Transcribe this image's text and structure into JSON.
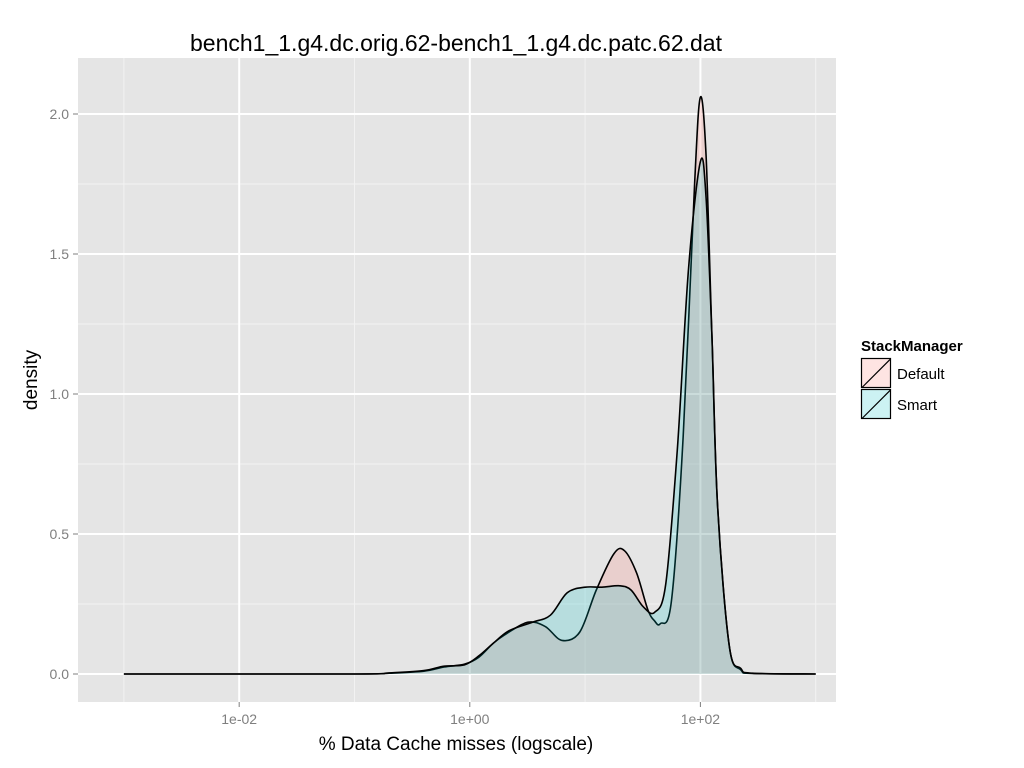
{
  "chart_data": {
    "type": "area",
    "title": "bench1_1.g4.dc.orig.62-bench1_1.g4.dc.patc.62.dat",
    "xlabel": "% Data Cache misses (logscale)",
    "ylabel": "density",
    "x_scale": "log10",
    "xlim": [
      0.0004,
      1500
    ],
    "ylim": [
      -0.1,
      2.2
    ],
    "x_ticks": [
      {
        "value": 0.01,
        "label": "1e-02"
      },
      {
        "value": 1,
        "label": "1e+00"
      },
      {
        "value": 100,
        "label": "1e+02"
      }
    ],
    "y_ticks": [
      {
        "value": 0.0,
        "label": "0.0"
      },
      {
        "value": 0.5,
        "label": "0.5"
      },
      {
        "value": 1.0,
        "label": "1.0"
      },
      {
        "value": 1.5,
        "label": "1.5"
      },
      {
        "value": 2.0,
        "label": "2.0"
      }
    ],
    "grid": true,
    "legend": {
      "title": "StackManager",
      "position": "right"
    },
    "series": [
      {
        "name": "Default",
        "color": "#F8766D",
        "points": [
          [
            0.001,
            0
          ],
          [
            0.1,
            0
          ],
          [
            0.2,
            0.003
          ],
          [
            0.4,
            0.01
          ],
          [
            0.6,
            0.025
          ],
          [
            0.9,
            0.035
          ],
          [
            1.2,
            0.06
          ],
          [
            1.6,
            0.11
          ],
          [
            2.1,
            0.145
          ],
          [
            3.2,
            0.185
          ],
          [
            4.5,
            0.17
          ],
          [
            6.3,
            0.12
          ],
          [
            9,
            0.15
          ],
          [
            12.5,
            0.3
          ],
          [
            17.8,
            0.43
          ],
          [
            22,
            0.44
          ],
          [
            28,
            0.36
          ],
          [
            35,
            0.23
          ],
          [
            40,
            0.19
          ],
          [
            45,
            0.18
          ],
          [
            56,
            0.26
          ],
          [
            71,
            0.85
          ],
          [
            89,
            1.75
          ],
          [
            100,
            2.06
          ],
          [
            112,
            1.85
          ],
          [
            126,
            1.2
          ],
          [
            141,
            0.6
          ],
          [
            178,
            0.1
          ],
          [
            224,
            0.015
          ],
          [
            282,
            0.002
          ],
          [
            1000,
            0
          ]
        ]
      },
      {
        "name": "Smart",
        "color": "#00BFC4",
        "points": [
          [
            0.001,
            0
          ],
          [
            0.1,
            0
          ],
          [
            0.2,
            0.004
          ],
          [
            0.4,
            0.012
          ],
          [
            0.6,
            0.028
          ],
          [
            0.9,
            0.033
          ],
          [
            1.2,
            0.065
          ],
          [
            1.6,
            0.11
          ],
          [
            2.2,
            0.155
          ],
          [
            3.5,
            0.185
          ],
          [
            5,
            0.21
          ],
          [
            7,
            0.29
          ],
          [
            10,
            0.31
          ],
          [
            14,
            0.31
          ],
          [
            20,
            0.315
          ],
          [
            25,
            0.3
          ],
          [
            32,
            0.24
          ],
          [
            40,
            0.22
          ],
          [
            50,
            0.32
          ],
          [
            63,
            0.8
          ],
          [
            79,
            1.45
          ],
          [
            100,
            1.83
          ],
          [
            112,
            1.7
          ],
          [
            126,
            1.2
          ],
          [
            141,
            0.6
          ],
          [
            178,
            0.1
          ],
          [
            224,
            0.02
          ],
          [
            282,
            0.003
          ],
          [
            1000,
            0
          ]
        ]
      }
    ]
  }
}
